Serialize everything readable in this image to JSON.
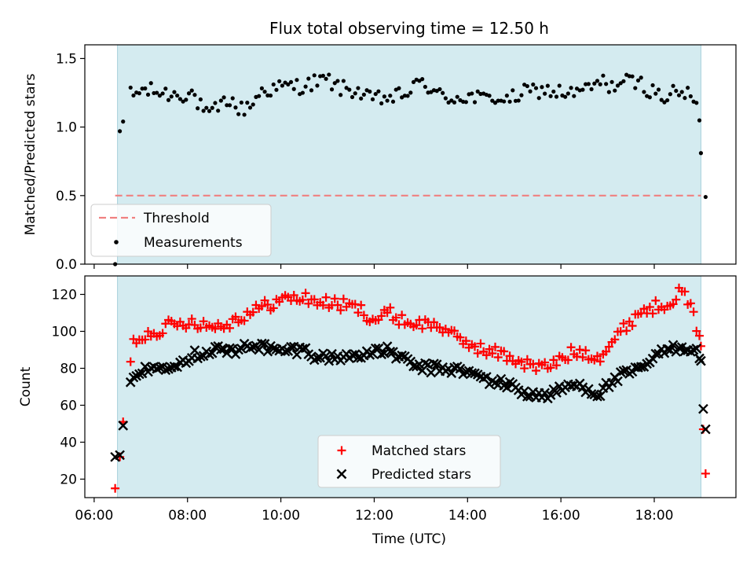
{
  "title": "Flux total observing time = 12.50 h",
  "colors": {
    "shade": "#d4ebf0",
    "shade_edge": "#a7d1dc",
    "threshold": "#f08080",
    "matched": "#ff0000",
    "predicted": "#000000",
    "measure": "#000000"
  },
  "chart_data": [
    {
      "type": "scatter",
      "ylabel": "Matched/Predicted stars",
      "xlim_hours": [
        5.8,
        19.75
      ],
      "ylim": [
        0,
        1.6
      ],
      "yticks": [
        0.0,
        0.5,
        1.0,
        1.5
      ],
      "ytick_labels": [
        "0.0",
        "0.5",
        "1.0",
        "1.5"
      ],
      "shaded_interval_hours": [
        6.5,
        19.0
      ],
      "threshold": {
        "name": "Threshold",
        "value": 0.5,
        "x_range_hours": [
          6.45,
          19.0
        ]
      },
      "legend": {
        "position": "lower-left",
        "entries": [
          "Threshold",
          "Measurements"
        ]
      },
      "series": [
        {
          "name": "Measurements",
          "anchors": [
            [
              6.45,
              0.0
            ],
            [
              6.55,
              0.97
            ],
            [
              6.62,
              1.04
            ],
            [
              6.7,
              1.24
            ],
            [
              6.85,
              1.23
            ],
            [
              7.0,
              1.27
            ],
            [
              7.3,
              1.26
            ],
            [
              7.6,
              1.24
            ],
            [
              7.9,
              1.24
            ],
            [
              8.1,
              1.25
            ],
            [
              8.25,
              1.16
            ],
            [
              8.45,
              1.07
            ],
            [
              8.65,
              1.14
            ],
            [
              8.9,
              1.21
            ],
            [
              9.1,
              1.12
            ],
            [
              9.35,
              1.16
            ],
            [
              9.6,
              1.27
            ],
            [
              9.9,
              1.28
            ],
            [
              10.2,
              1.3
            ],
            [
              10.5,
              1.3
            ],
            [
              10.75,
              1.33
            ],
            [
              11.0,
              1.34
            ],
            [
              11.3,
              1.28
            ],
            [
              11.6,
              1.27
            ],
            [
              11.9,
              1.2
            ],
            [
              12.2,
              1.21
            ],
            [
              12.5,
              1.22
            ],
            [
              12.8,
              1.27
            ],
            [
              13.05,
              1.34
            ],
            [
              13.25,
              1.26
            ],
            [
              13.5,
              1.21
            ],
            [
              13.8,
              1.22
            ],
            [
              14.1,
              1.22
            ],
            [
              14.35,
              1.2
            ],
            [
              14.6,
              1.22
            ],
            [
              14.85,
              1.19
            ],
            [
              15.2,
              1.25
            ],
            [
              15.55,
              1.27
            ],
            [
              15.85,
              1.26
            ],
            [
              16.2,
              1.24
            ],
            [
              16.55,
              1.27
            ],
            [
              16.85,
              1.33
            ],
            [
              17.1,
              1.3
            ],
            [
              17.4,
              1.33
            ],
            [
              17.7,
              1.32
            ],
            [
              17.95,
              1.26
            ],
            [
              18.2,
              1.22
            ],
            [
              18.5,
              1.25
            ],
            [
              18.75,
              1.24
            ],
            [
              18.95,
              1.12
            ],
            [
              19.0,
              0.81
            ],
            [
              19.1,
              0.49
            ]
          ]
        }
      ]
    },
    {
      "type": "scatter",
      "xlabel": "Time (UTC)",
      "ylabel": "Count",
      "xlim_hours": [
        5.8,
        19.75
      ],
      "ylim": [
        10,
        130
      ],
      "yticks": [
        20,
        40,
        60,
        80,
        100,
        120
      ],
      "ytick_labels": [
        "20",
        "40",
        "60",
        "80",
        "100",
        "120"
      ],
      "xticks_hours": [
        6,
        8,
        10,
        12,
        14,
        16,
        18
      ],
      "xtick_labels": [
        "06:00",
        "08:00",
        "10:00",
        "12:00",
        "14:00",
        "16:00",
        "18:00"
      ],
      "shaded_interval_hours": [
        6.5,
        19.0
      ],
      "legend": {
        "position": "lower-center",
        "entries": [
          "Matched stars",
          "Predicted stars"
        ]
      },
      "series": [
        {
          "name": "Matched stars",
          "anchors": [
            [
              6.45,
              15
            ],
            [
              6.55,
              32
            ],
            [
              6.62,
              51
            ],
            [
              6.7,
              76
            ],
            [
              6.85,
              95
            ],
            [
              7.0,
              97
            ],
            [
              7.3,
              100
            ],
            [
              7.6,
              103
            ],
            [
              7.9,
              104
            ],
            [
              8.1,
              106
            ],
            [
              8.4,
              103
            ],
            [
              8.7,
              103
            ],
            [
              9.0,
              106
            ],
            [
              9.3,
              110
            ],
            [
              9.6,
              113
            ],
            [
              9.9,
              116
            ],
            [
              10.2,
              118
            ],
            [
              10.5,
              118
            ],
            [
              10.8,
              116
            ],
            [
              11.1,
              115
            ],
            [
              11.4,
              114
            ],
            [
              11.7,
              112
            ],
            [
              12.0,
              106
            ],
            [
              12.3,
              110
            ],
            [
              12.6,
              106
            ],
            [
              12.9,
              104
            ],
            [
              13.2,
              104
            ],
            [
              13.5,
              102
            ],
            [
              13.8,
              95
            ],
            [
              14.1,
              93
            ],
            [
              14.4,
              89
            ],
            [
              14.7,
              88
            ],
            [
              15.0,
              85
            ],
            [
              15.3,
              82
            ],
            [
              15.6,
              80
            ],
            [
              15.9,
              83
            ],
            [
              16.2,
              88
            ],
            [
              16.5,
              89
            ],
            [
              16.8,
              86
            ],
            [
              17.1,
              94
            ],
            [
              17.4,
              103
            ],
            [
              17.7,
              111
            ],
            [
              18.0,
              113
            ],
            [
              18.3,
              116
            ],
            [
              18.55,
              121
            ],
            [
              18.75,
              117
            ],
            [
              18.9,
              101
            ],
            [
              19.0,
              92
            ],
            [
              19.05,
              47
            ],
            [
              19.1,
              23
            ]
          ]
        },
        {
          "name": "Predicted stars",
          "anchors": [
            [
              6.45,
              32
            ],
            [
              6.55,
              33
            ],
            [
              6.62,
              49
            ],
            [
              6.7,
              61
            ],
            [
              6.85,
              78
            ],
            [
              7.0,
              78
            ],
            [
              7.3,
              80
            ],
            [
              7.6,
              82
            ],
            [
              7.9,
              84
            ],
            [
              8.1,
              87
            ],
            [
              8.4,
              89
            ],
            [
              8.7,
              91
            ],
            [
              9.0,
              88
            ],
            [
              9.3,
              93
            ],
            [
              9.6,
              92
            ],
            [
              9.9,
              89
            ],
            [
              10.2,
              90
            ],
            [
              10.5,
              90
            ],
            [
              10.8,
              86
            ],
            [
              11.1,
              86
            ],
            [
              11.4,
              86
            ],
            [
              11.7,
              88
            ],
            [
              12.0,
              88
            ],
            [
              12.3,
              90
            ],
            [
              12.6,
              85
            ],
            [
              12.9,
              81
            ],
            [
              13.2,
              80
            ],
            [
              13.5,
              80
            ],
            [
              13.8,
              79
            ],
            [
              14.1,
              77
            ],
            [
              14.4,
              74
            ],
            [
              14.7,
              72
            ],
            [
              15.0,
              70
            ],
            [
              15.3,
              66
            ],
            [
              15.6,
              65
            ],
            [
              15.9,
              67
            ],
            [
              16.2,
              71
            ],
            [
              16.5,
              70
            ],
            [
              16.8,
              66
            ],
            [
              17.1,
              73
            ],
            [
              17.4,
              77
            ],
            [
              17.7,
              79
            ],
            [
              18.0,
              86
            ],
            [
              18.3,
              90
            ],
            [
              18.55,
              92
            ],
            [
              18.75,
              91
            ],
            [
              18.9,
              89
            ],
            [
              19.0,
              84
            ],
            [
              19.05,
              58
            ],
            [
              19.1,
              47
            ]
          ]
        }
      ]
    }
  ]
}
